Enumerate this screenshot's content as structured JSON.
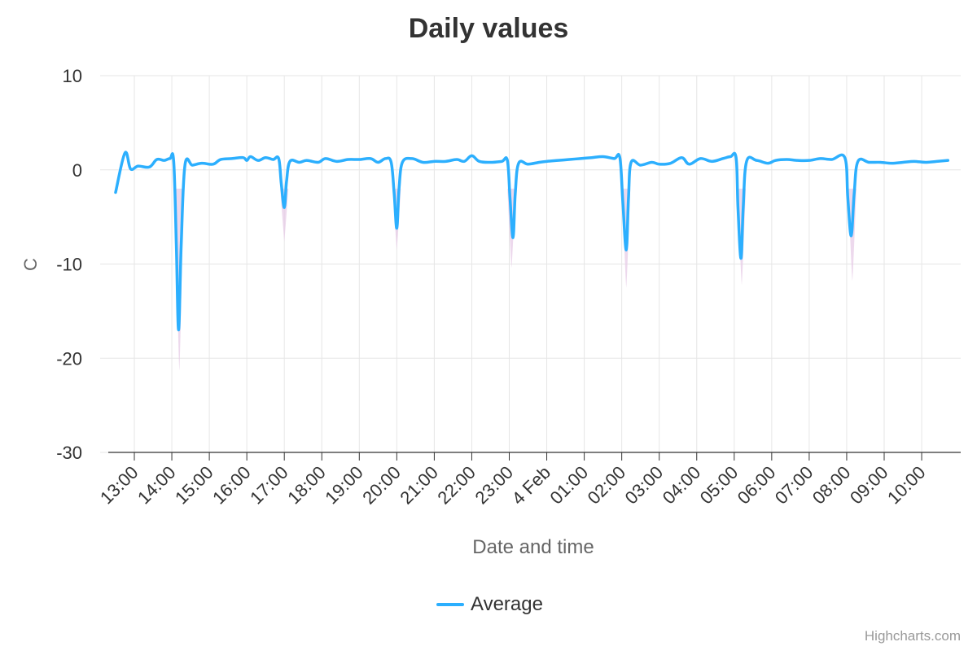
{
  "chart_data": {
    "type": "line",
    "title": "Daily values",
    "xlabel": "Date and time",
    "ylabel": "C",
    "ylim": [
      -30,
      10
    ],
    "y_ticks": [
      10,
      0,
      -10,
      -20,
      -30
    ],
    "x_tick_labels": [
      "13:00",
      "14:00",
      "15:00",
      "16:00",
      "17:00",
      "18:00",
      "19:00",
      "20:00",
      "21:00",
      "22:00",
      "23:00",
      "4 Feb",
      "01:00",
      "02:00",
      "03:00",
      "04:00",
      "05:00",
      "06:00",
      "07:00",
      "08:00",
      "09:00",
      "10:00"
    ],
    "x_unit": "hours since 13:00",
    "x_range": [
      -0.7,
      21.8
    ],
    "grid": true,
    "legend_position": "bottom-center",
    "series": [
      {
        "name": "Average",
        "color": "#2caffe",
        "points": [
          [
            -0.5,
            -2.4
          ],
          [
            -0.25,
            1.8
          ],
          [
            -0.1,
            0.1
          ],
          [
            0.1,
            0.4
          ],
          [
            0.4,
            0.3
          ],
          [
            0.6,
            1.1
          ],
          [
            0.8,
            1.0
          ],
          [
            0.95,
            1.2
          ],
          [
            1.05,
            0.9
          ],
          [
            1.12,
            -8.0
          ],
          [
            1.18,
            -17.0
          ],
          [
            1.25,
            -8.0
          ],
          [
            1.35,
            0.5
          ],
          [
            1.55,
            0.5
          ],
          [
            1.8,
            0.7
          ],
          [
            2.1,
            0.6
          ],
          [
            2.3,
            1.1
          ],
          [
            2.6,
            1.2
          ],
          [
            2.9,
            1.3
          ],
          [
            3.0,
            1.0
          ],
          [
            3.1,
            1.4
          ],
          [
            3.3,
            1.0
          ],
          [
            3.5,
            1.3
          ],
          [
            3.7,
            1.1
          ],
          [
            3.85,
            1.2
          ],
          [
            3.92,
            -1.5
          ],
          [
            4.0,
            -4.0
          ],
          [
            4.06,
            -1.2
          ],
          [
            4.15,
            0.9
          ],
          [
            4.4,
            0.8
          ],
          [
            4.6,
            1.0
          ],
          [
            4.9,
            0.8
          ],
          [
            5.1,
            1.2
          ],
          [
            5.4,
            0.9
          ],
          [
            5.7,
            1.1
          ],
          [
            6.0,
            1.1
          ],
          [
            6.3,
            1.2
          ],
          [
            6.5,
            0.8
          ],
          [
            6.7,
            1.2
          ],
          [
            6.85,
            0.8
          ],
          [
            6.93,
            -2.5
          ],
          [
            7.0,
            -6.2
          ],
          [
            7.06,
            -2.0
          ],
          [
            7.15,
            0.8
          ],
          [
            7.4,
            1.2
          ],
          [
            7.7,
            0.8
          ],
          [
            8.0,
            0.9
          ],
          [
            8.3,
            0.9
          ],
          [
            8.6,
            1.1
          ],
          [
            8.8,
            0.9
          ],
          [
            9.0,
            1.5
          ],
          [
            9.2,
            0.9
          ],
          [
            9.5,
            0.8
          ],
          [
            9.8,
            0.9
          ],
          [
            9.95,
            1.0
          ],
          [
            10.02,
            -3.0
          ],
          [
            10.1,
            -7.2
          ],
          [
            10.16,
            -2.5
          ],
          [
            10.25,
            0.7
          ],
          [
            10.5,
            0.6
          ],
          [
            10.8,
            0.8
          ],
          [
            11.0,
            0.9
          ],
          [
            11.3,
            1.0
          ],
          [
            11.6,
            1.1
          ],
          [
            11.9,
            1.2
          ],
          [
            12.2,
            1.3
          ],
          [
            12.5,
            1.4
          ],
          [
            12.8,
            1.2
          ],
          [
            12.95,
            1.3
          ],
          [
            13.03,
            -3.5
          ],
          [
            13.12,
            -8.5
          ],
          [
            13.18,
            -3.0
          ],
          [
            13.25,
            0.8
          ],
          [
            13.5,
            0.5
          ],
          [
            13.8,
            0.8
          ],
          [
            14.0,
            0.6
          ],
          [
            14.3,
            0.7
          ],
          [
            14.6,
            1.3
          ],
          [
            14.8,
            0.6
          ],
          [
            15.1,
            1.2
          ],
          [
            15.4,
            0.9
          ],
          [
            15.7,
            1.2
          ],
          [
            15.9,
            1.4
          ],
          [
            16.05,
            1.3
          ],
          [
            16.1,
            -4.0
          ],
          [
            16.18,
            -9.4
          ],
          [
            16.24,
            -4.0
          ],
          [
            16.33,
            0.9
          ],
          [
            16.6,
            1.0
          ],
          [
            16.9,
            0.7
          ],
          [
            17.1,
            1.0
          ],
          [
            17.4,
            1.1
          ],
          [
            17.7,
            1.0
          ],
          [
            18.0,
            1.0
          ],
          [
            18.3,
            1.2
          ],
          [
            18.6,
            1.1
          ],
          [
            18.95,
            1.3
          ],
          [
            19.03,
            -3.0
          ],
          [
            19.12,
            -7.0
          ],
          [
            19.2,
            -2.5
          ],
          [
            19.3,
            0.9
          ],
          [
            19.6,
            0.8
          ],
          [
            19.9,
            0.8
          ],
          [
            20.2,
            0.7
          ],
          [
            20.5,
            0.8
          ],
          [
            20.8,
            0.9
          ],
          [
            21.1,
            0.8
          ],
          [
            21.4,
            0.9
          ],
          [
            21.7,
            1.0
          ]
        ]
      }
    ],
    "range_band": {
      "color": "#e6c9e6",
      "dips": [
        {
          "x": 1.2,
          "low": -21.3
        },
        {
          "x": 4.0,
          "low": -7.6
        },
        {
          "x": 7.0,
          "low": -8.5
        },
        {
          "x": 10.06,
          "low": -10.4
        },
        {
          "x": 13.12,
          "low": -12.5
        },
        {
          "x": 16.2,
          "low": -12.2
        },
        {
          "x": 19.15,
          "low": -11.8
        }
      ]
    }
  },
  "credit": "Highcharts.com"
}
